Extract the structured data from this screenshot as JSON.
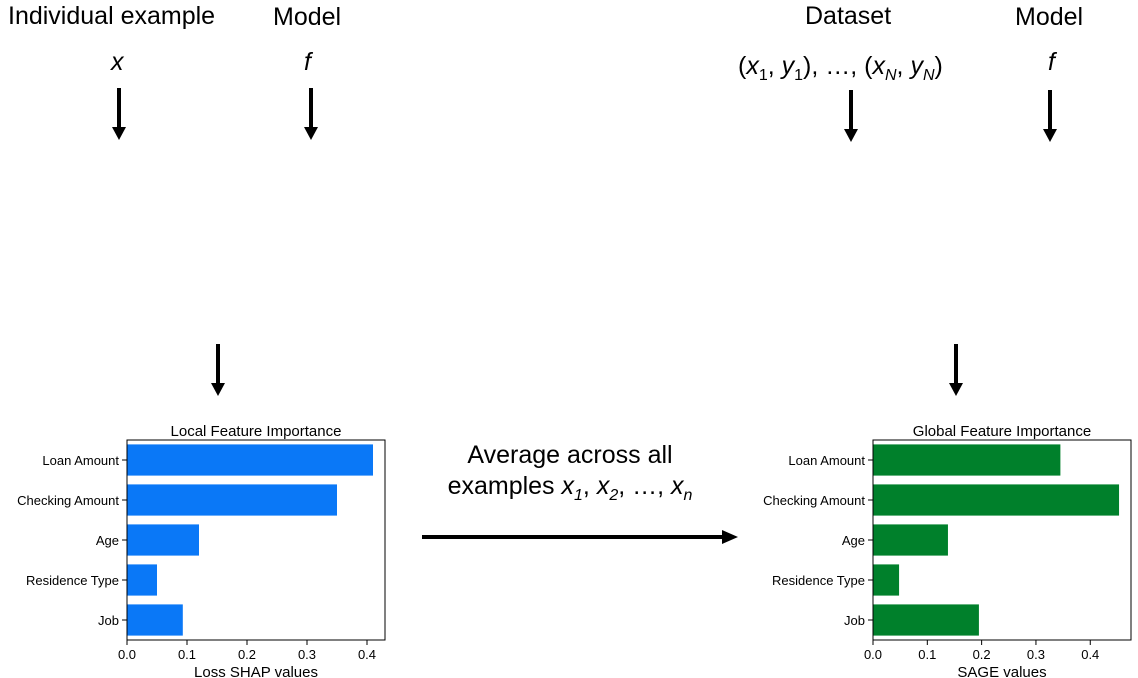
{
  "left": {
    "input_label": "Individual example",
    "input_var": "x",
    "model_label": "Model",
    "model_var": "f",
    "method": "Loss SHAP",
    "method_color": "#F07537",
    "chart_title": "Local Feature Importance",
    "chart_xlabel": "Loss SHAP values",
    "bar_color": "#0A78F7"
  },
  "right": {
    "input_label": "Dataset",
    "input_var_parts": [
      "(",
      "x",
      "1",
      ", ",
      "y",
      "1",
      "), …, (",
      "x",
      "N",
      ", ",
      "y",
      "N",
      ")"
    ],
    "model_label": "Model",
    "model_var": "f",
    "method": "SAGE",
    "method_color": "#62A645",
    "chart_title": "Global Feature Importance",
    "chart_xlabel": "SAGE values",
    "bar_color": "#00802B"
  },
  "middle": {
    "line1": "Average across all",
    "line2_prefix": "examples ",
    "line2_parts": [
      "x",
      "1",
      ", ",
      "x",
      "2",
      ", …, ",
      "x",
      "n"
    ]
  },
  "chart_data": [
    {
      "type": "bar",
      "orientation": "horizontal",
      "title": "Local Feature Importance",
      "xlabel": "Loss SHAP values",
      "ylabel": "",
      "categories": [
        "Loan Amount",
        "Checking Amount",
        "Age",
        "Residence Type",
        "Job"
      ],
      "values": [
        0.41,
        0.35,
        0.12,
        0.05,
        0.093
      ],
      "xlim": [
        0,
        0.43
      ],
      "xticks": [
        "0.0",
        "0.1",
        "0.2",
        "0.3",
        "0.4"
      ],
      "grid": false,
      "color": "#0A78F7"
    },
    {
      "type": "bar",
      "orientation": "horizontal",
      "title": "Global Feature Importance",
      "xlabel": "SAGE values",
      "ylabel": "",
      "categories": [
        "Loan Amount",
        "Checking Amount",
        "Age",
        "Residence Type",
        "Job"
      ],
      "values": [
        0.345,
        0.453,
        0.138,
        0.048,
        0.195
      ],
      "xlim": [
        0,
        0.475
      ],
      "xticks": [
        "0.0",
        "0.1",
        "0.2",
        "0.3",
        "0.4"
      ],
      "grid": false,
      "color": "#00802B"
    }
  ]
}
